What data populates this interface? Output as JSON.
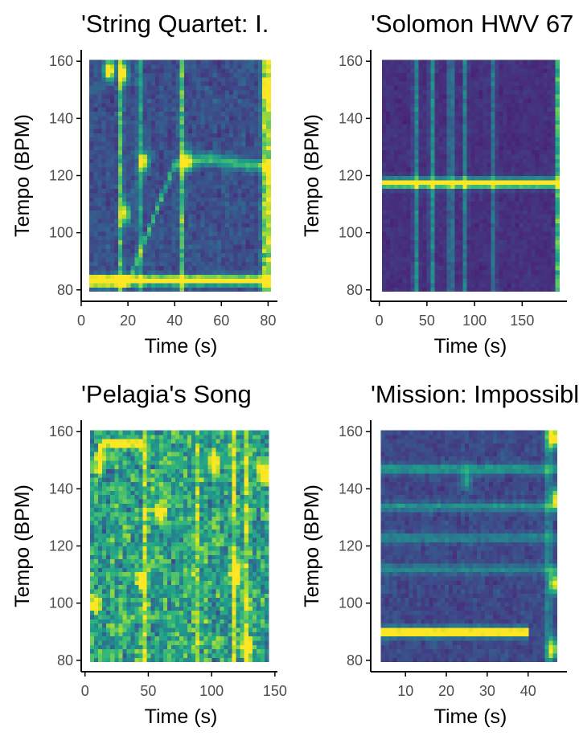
{
  "figure": {
    "colormap": [
      "#440154",
      "#482878",
      "#3e4989",
      "#31688e",
      "#26828e",
      "#1f9e89",
      "#35b779",
      "#6ece58",
      "#b5de2b",
      "#fde725"
    ]
  },
  "chart_data": [
    {
      "type": "heatmap",
      "title": "'String Quartet: I.",
      "xlabel": "Time (s)",
      "ylabel": "Tempo (BPM)",
      "xlim": [
        0,
        84
      ],
      "ylim": [
        76,
        164
      ],
      "xticks": [
        0,
        20,
        40,
        60,
        80
      ],
      "xtick_labels": [
        "0",
        "20",
        "40",
        "60",
        "80"
      ],
      "yticks": [
        80,
        100,
        120,
        140,
        160
      ],
      "ytick_labels": [
        "80",
        "100",
        "120",
        "140",
        "160"
      ],
      "data_extent": {
        "x": [
          3.5,
          81
        ],
        "y": [
          79.5,
          160.5
        ]
      },
      "grid": false,
      "legend": "none",
      "features": {
        "bands": [
          {
            "tempo": 83.5,
            "x_from": 3.5,
            "x_to": 81,
            "strength": 1.0
          }
        ],
        "band_paths": [
          {
            "x": [
              4,
              20,
              40,
              55,
              70,
              81
            ],
            "y": [
              83,
              82.5,
              124,
              126,
              124,
              123
            ],
            "strength": 0.45
          }
        ],
        "verticals": [
          {
            "time": 17,
            "strength": 0.6
          },
          {
            "time": 25,
            "strength": 0.5
          },
          {
            "time": 43,
            "strength": 0.6
          },
          {
            "time": 78,
            "strength": 0.75
          },
          {
            "time": 80.5,
            "strength": 0.9
          }
        ],
        "blobs": [
          {
            "time": 12,
            "tempo": 157,
            "strength": 1.0
          },
          {
            "time": 18,
            "tempo": 156,
            "strength": 0.85
          },
          {
            "time": 27,
            "tempo": 125,
            "strength": 0.8
          },
          {
            "time": 45,
            "tempo": 125.5,
            "strength": 0.7
          },
          {
            "time": 19,
            "tempo": 107,
            "strength": 0.7
          },
          {
            "time": 80,
            "tempo": 150,
            "strength": 0.8
          }
        ],
        "noise": 0.25,
        "base": 0.12
      }
    },
    {
      "type": "heatmap",
      "title": "'Solomon HWV 67",
      "xlabel": "Time (s)",
      "ylabel": "Tempo (BPM)",
      "xlim": [
        -9,
        197
      ],
      "ylim": [
        76,
        164
      ],
      "xticks": [
        0,
        50,
        100,
        150
      ],
      "xtick_labels": [
        "0",
        "50",
        "100",
        "150"
      ],
      "yticks": [
        80,
        100,
        120,
        140,
        160
      ],
      "ytick_labels": [
        "80",
        "100",
        "120",
        "140",
        "160"
      ],
      "data_extent": {
        "x": [
          3,
          189
        ],
        "y": [
          79.5,
          160.5
        ]
      },
      "grid": false,
      "legend": "none",
      "features": {
        "bands": [
          {
            "tempo": 117.5,
            "x_from": 3,
            "x_to": 189,
            "strength": 1.0
          }
        ],
        "band_paths": [],
        "verticals": [
          {
            "time": 38,
            "strength": 0.45
          },
          {
            "time": 55,
            "strength": 0.45
          },
          {
            "time": 75,
            "strength": 0.5
          },
          {
            "time": 90,
            "strength": 0.35
          },
          {
            "time": 120,
            "strength": 0.3
          },
          {
            "time": 188,
            "strength": 0.8
          }
        ],
        "blobs": [],
        "noise": 0.12,
        "base": 0.08
      }
    },
    {
      "type": "heatmap",
      "title": "'Pelagia's Song",
      "xlabel": "Time (s)",
      "ylabel": "Tempo (BPM)",
      "xlim": [
        -3,
        152
      ],
      "ylim": [
        76,
        164
      ],
      "xticks": [
        0,
        50,
        100,
        150
      ],
      "xtick_labels": [
        "0",
        "50",
        "100",
        "150"
      ],
      "yticks": [
        80,
        100,
        120,
        140,
        160
      ],
      "ytick_labels": [
        "80",
        "100",
        "120",
        "140",
        "160"
      ],
      "data_extent": {
        "x": [
          4,
          145
        ],
        "y": [
          79.5,
          160.5
        ]
      },
      "grid": false,
      "legend": "none",
      "features": {
        "bands": [
          {
            "tempo": 156,
            "x_from": 15,
            "x_to": 45,
            "strength": 0.6
          }
        ],
        "band_paths": [],
        "verticals": [
          {
            "time": 48,
            "strength": 0.5
          },
          {
            "time": 88,
            "strength": 0.4
          },
          {
            "time": 118,
            "strength": 0.45
          },
          {
            "time": 128,
            "strength": 0.45
          }
        ],
        "blobs": [
          {
            "time": 12,
            "tempo": 150,
            "strength": 0.9
          },
          {
            "time": 45,
            "tempo": 108,
            "strength": 0.9
          },
          {
            "time": 102,
            "tempo": 150,
            "strength": 0.9
          },
          {
            "time": 120,
            "tempo": 110,
            "strength": 0.9
          },
          {
            "time": 140,
            "tempo": 146,
            "strength": 1.0
          },
          {
            "time": 60,
            "tempo": 132,
            "strength": 0.8
          },
          {
            "time": 127,
            "tempo": 84,
            "strength": 0.9
          },
          {
            "time": 8,
            "tempo": 100,
            "strength": 0.8
          }
        ],
        "noise": 0.75,
        "base": 0.2
      }
    },
    {
      "type": "heatmap",
      "title": "'Mission: Impossible",
      "xlabel": "Time (s)",
      "ylabel": "Tempo (BPM)",
      "xlim": [
        1.5,
        49.5
      ],
      "ylim": [
        76,
        164
      ],
      "xticks": [
        10,
        20,
        30,
        40
      ],
      "xtick_labels": [
        "10",
        "20",
        "30",
        "40"
      ],
      "yticks": [
        80,
        100,
        120,
        140,
        160
      ],
      "ytick_labels": [
        "80",
        "100",
        "120",
        "140",
        "160"
      ],
      "data_extent": {
        "x": [
          4,
          47
        ],
        "y": [
          79.5,
          160.5
        ]
      },
      "grid": false,
      "legend": "none",
      "features": {
        "bands": [
          {
            "tempo": 90,
            "x_from": 4,
            "x_to": 40.5,
            "strength": 1.0
          },
          {
            "tempo": 147,
            "x_from": 4,
            "x_to": 47,
            "strength": 0.35
          },
          {
            "tempo": 134,
            "x_from": 4,
            "x_to": 47,
            "strength": 0.3
          },
          {
            "tempo": 123,
            "x_from": 4,
            "x_to": 47,
            "strength": 0.25
          },
          {
            "tempo": 112,
            "x_from": 4,
            "x_to": 47,
            "strength": 0.25
          }
        ],
        "band_paths": [],
        "verticals": [
          {
            "time": 45,
            "strength": 0.45
          }
        ],
        "blobs": [
          {
            "time": 46,
            "tempo": 158,
            "strength": 1.0
          },
          {
            "time": 47,
            "tempo": 137,
            "strength": 0.9
          },
          {
            "time": 46.5,
            "tempo": 107,
            "strength": 0.8
          },
          {
            "time": 46,
            "tempo": 84,
            "strength": 0.75
          },
          {
            "time": 25,
            "tempo": 143,
            "strength": 0.4
          }
        ],
        "noise": 0.2,
        "base": 0.12
      }
    }
  ]
}
